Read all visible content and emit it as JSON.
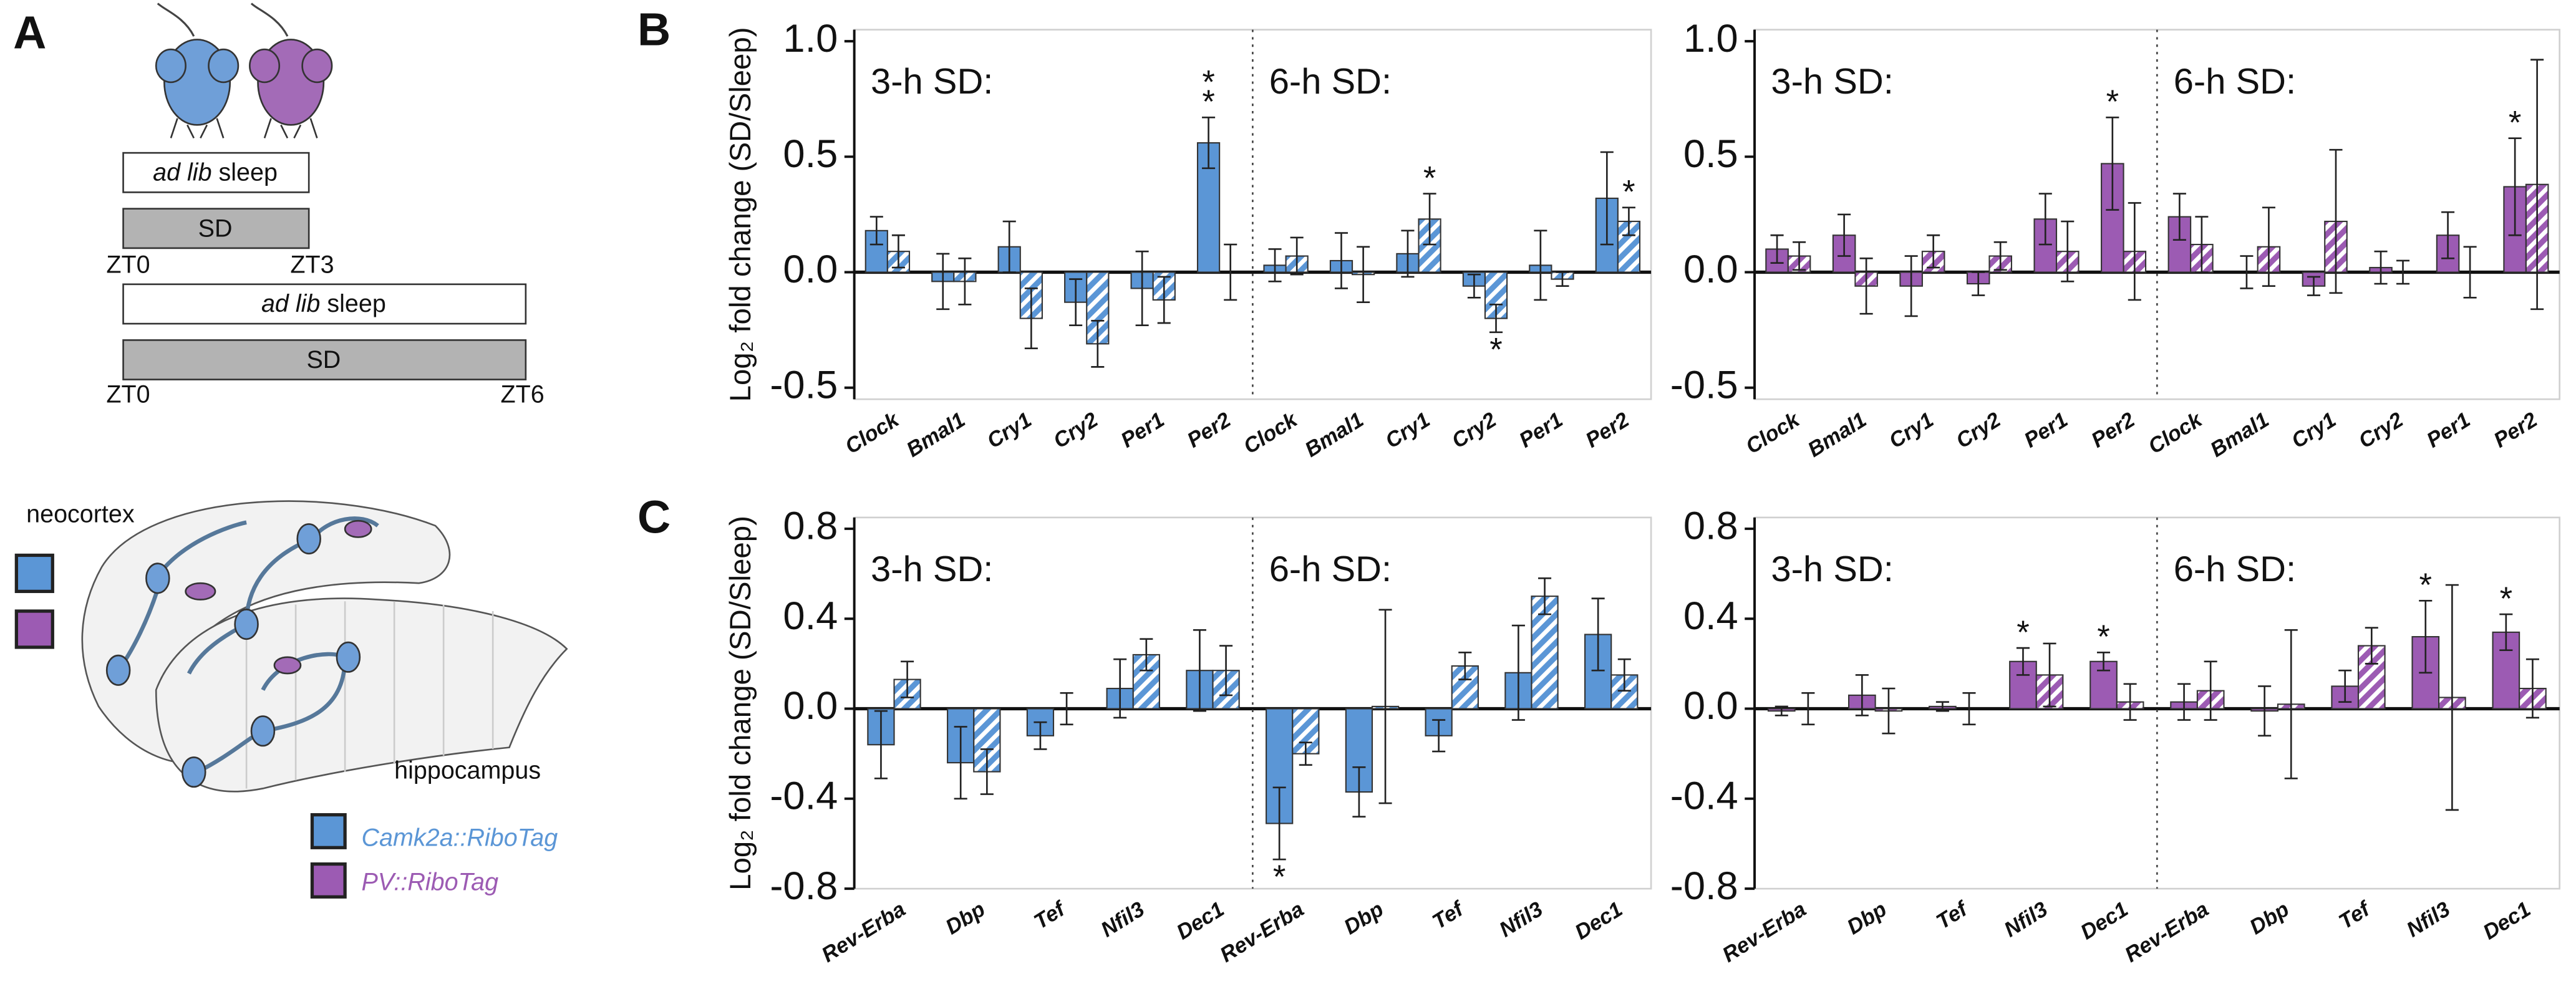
{
  "panel_a": {
    "label": "A",
    "timeline": [
      {
        "sleep": [
          "ad lib",
          "sleep"
        ],
        "sd": "SD",
        "start": "ZT0",
        "end": "ZT3"
      },
      {
        "sleep": [
          "ad lib",
          "sleep"
        ],
        "sd": "SD",
        "start": "ZT0",
        "end": "ZT6"
      }
    ],
    "regions": [
      "neocortex",
      "hippocampus"
    ],
    "legend": [
      "Camk2a::RiboTag",
      "PV::RiboTag"
    ]
  },
  "chart_data": [
    {
      "type": "bar",
      "panel": "B",
      "y_label": "Log₂ fold change (SD/Sleep)",
      "groups": [
        "3-h SD:",
        "6-h SD:"
      ],
      "categories": [
        "Clock",
        "Bmal1",
        "Cry1",
        "Cry2",
        "Per1",
        "Per2",
        "Clock",
        "Bmal1",
        "Cry1",
        "Cry2",
        "Per1",
        "Per2"
      ],
      "ylim": [
        -0.55,
        1.05
      ],
      "yticks": [
        {
          "value": 1,
          "label": "1.0"
        },
        0.5,
        {
          "value": 0,
          "label": "0.0"
        },
        -0.5
      ],
      "series": [
        {
          "color": "#5b96d6",
          "pattern": "solid",
          "values": [
            0.18,
            -0.04,
            0.11,
            -0.13,
            -0.07,
            0.56,
            0.03,
            0.05,
            0.08,
            -0.06,
            0.03,
            0.32
          ],
          "errors": [
            0.06,
            0.12,
            0.11,
            0.1,
            0.16,
            0.11,
            0.07,
            0.12,
            0.1,
            0.05,
            0.15,
            0.2
          ],
          "significance": [
            null,
            null,
            null,
            null,
            null,
            [
              "*",
              "*"
            ],
            null,
            null,
            null,
            null,
            null,
            null
          ]
        },
        {
          "color": "#5b96d6",
          "pattern": "hatched",
          "values": [
            0.09,
            -0.04,
            -0.2,
            -0.31,
            -0.12,
            0.0,
            0.07,
            -0.01,
            0.23,
            -0.2,
            -0.03,
            0.22
          ],
          "errors": [
            0.07,
            0.1,
            0.13,
            0.1,
            0.1,
            0.12,
            0.08,
            0.12,
            0.11,
            0.06,
            0.03,
            0.06
          ],
          "significance": [
            null,
            null,
            null,
            null,
            null,
            null,
            null,
            null,
            [
              "*"
            ],
            [
              "*"
            ],
            null,
            [
              "*"
            ]
          ]
        }
      ]
    },
    {
      "type": "bar",
      "groups": [
        "3-h SD:",
        "6-h SD:"
      ],
      "categories": [
        "Clock",
        "Bmal1",
        "Cry1",
        "Cry2",
        "Per1",
        "Per2",
        "Clock",
        "Bmal1",
        "Cry1",
        "Cry2",
        "Per1",
        "Per2"
      ],
      "ylim": [
        -0.55,
        1.05
      ],
      "yticks": [
        {
          "value": 1,
          "label": "1.0"
        },
        0.5,
        {
          "value": 0,
          "label": "0.0"
        },
        -0.5
      ],
      "series": [
        {
          "color": "#9c5bb3",
          "pattern": "solid",
          "values": [
            0.1,
            0.16,
            -0.06,
            -0.05,
            0.23,
            0.47,
            0.24,
            0.0,
            -0.06,
            0.02,
            0.16,
            0.37
          ],
          "errors": [
            0.06,
            0.09,
            0.13,
            0.05,
            0.11,
            0.2,
            0.1,
            0.07,
            0.04,
            0.07,
            0.1,
            0.21
          ],
          "significance": [
            null,
            null,
            null,
            null,
            null,
            [
              "*"
            ],
            null,
            null,
            null,
            null,
            null,
            [
              "*"
            ]
          ]
        },
        {
          "color": "#9c5bb3",
          "pattern": "hatched",
          "values": [
            0.07,
            -0.06,
            0.09,
            0.07,
            0.09,
            0.09,
            0.12,
            0.11,
            0.22,
            0.0,
            0.0,
            0.38
          ],
          "errors": [
            0.06,
            0.12,
            0.07,
            0.06,
            0.13,
            0.21,
            0.12,
            0.17,
            0.31,
            0.05,
            0.11,
            0.54
          ],
          "significance": [
            null,
            null,
            null,
            null,
            null,
            null,
            null,
            null,
            null,
            null,
            null,
            null
          ]
        }
      ]
    },
    {
      "type": "bar",
      "panel": "C",
      "y_label": "Log₂ fold change (SD/Sleep)",
      "groups": [
        "3-h SD:",
        "6-h SD:"
      ],
      "categories": [
        "Rev-Erba",
        "Dbp",
        "Tef",
        "Nfil3",
        "Dec1",
        "Rev-Erba",
        "Dbp",
        "Tef",
        "Nfil3",
        "Dec1"
      ],
      "ylim": [
        -0.8,
        0.85
      ],
      "yticks": [
        0.8,
        0.4,
        {
          "value": 0,
          "label": "0.0"
        },
        -0.4,
        -0.8
      ],
      "series": [
        {
          "color": "#5b96d6",
          "pattern": "solid",
          "values": [
            -0.16,
            -0.24,
            -0.12,
            0.09,
            0.17,
            -0.51,
            -0.37,
            -0.12,
            0.16,
            0.33
          ],
          "errors": [
            0.15,
            0.16,
            0.06,
            0.13,
            0.18,
            0.16,
            0.11,
            0.07,
            0.21,
            0.16
          ],
          "significance": [
            null,
            null,
            null,
            null,
            null,
            [
              "*"
            ],
            null,
            null,
            null,
            null
          ]
        },
        {
          "color": "#5b96d6",
          "pattern": "hatched",
          "values": [
            0.13,
            -0.28,
            0.0,
            0.24,
            0.17,
            -0.2,
            0.01,
            0.19,
            0.5,
            0.15
          ],
          "errors": [
            0.08,
            0.1,
            0.07,
            0.07,
            0.11,
            0.05,
            0.43,
            0.06,
            0.08,
            0.07
          ],
          "significance": [
            null,
            null,
            null,
            null,
            null,
            null,
            null,
            null,
            null,
            null
          ]
        }
      ]
    },
    {
      "type": "bar",
      "groups": [
        "3-h SD:",
        "6-h SD:"
      ],
      "categories": [
        "Rev-Erba",
        "Dbp",
        "Tef",
        "Nfil3",
        "Dec1",
        "Rev-Erba",
        "Dbp",
        "Tef",
        "Nfil3",
        "Dec1"
      ],
      "ylim": [
        -0.8,
        0.85
      ],
      "yticks": [
        0.8,
        0.4,
        {
          "value": 0,
          "label": "0.0"
        },
        -0.4,
        -0.8
      ],
      "series": [
        {
          "color": "#9c5bb3",
          "pattern": "solid",
          "values": [
            -0.01,
            0.06,
            0.01,
            0.21,
            0.21,
            0.03,
            -0.01,
            0.1,
            0.32,
            0.34
          ],
          "errors": [
            0.02,
            0.09,
            0.02,
            0.06,
            0.04,
            0.08,
            0.11,
            0.07,
            0.16,
            0.08
          ],
          "significance": [
            null,
            null,
            null,
            [
              "*"
            ],
            [
              "*"
            ],
            null,
            null,
            null,
            [
              "*"
            ],
            [
              "*"
            ]
          ]
        },
        {
          "color": "#9c5bb3",
          "pattern": "hatched",
          "values": [
            0.0,
            -0.01,
            0.0,
            0.15,
            0.03,
            0.08,
            0.02,
            0.28,
            0.05,
            0.09
          ],
          "errors": [
            0.07,
            0.1,
            0.07,
            0.14,
            0.08,
            0.13,
            0.33,
            0.08,
            0.5,
            0.13
          ],
          "significance": [
            null,
            null,
            null,
            null,
            null,
            null,
            null,
            null,
            null,
            null
          ]
        }
      ]
    }
  ]
}
